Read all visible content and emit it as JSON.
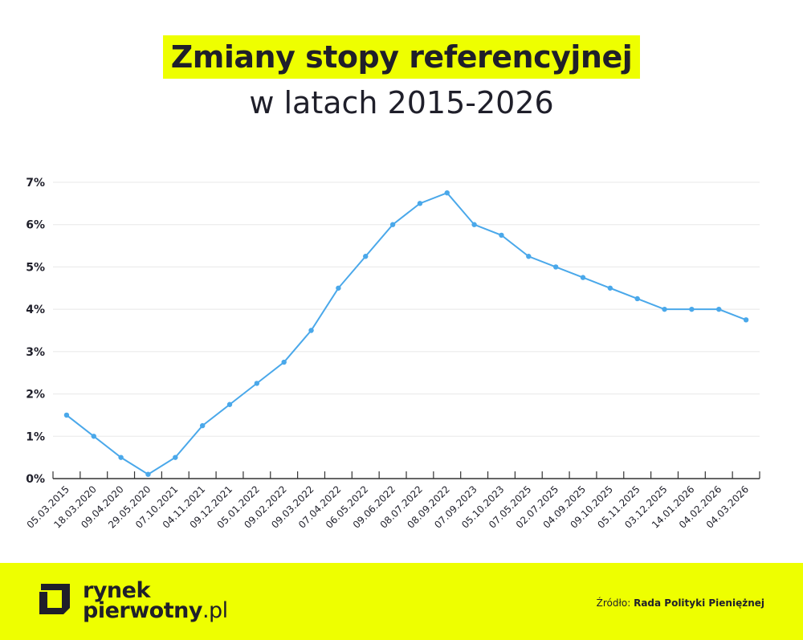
{
  "title_line1": "Zmiany stopy referencyjnej",
  "title_line2": "w latach 2015-2026",
  "chart_data": {
    "type": "line",
    "title": "Zmiany stopy referencyjnej w latach 2015-2026",
    "xlabel": "",
    "ylabel": "",
    "ylim": [
      0,
      7
    ],
    "y_ticks": [
      "0%",
      "1%",
      "2%",
      "3%",
      "4%",
      "5%",
      "6%",
      "7%"
    ],
    "grid": true,
    "line_color": "#4aa8ea",
    "categories": [
      "05.03.2015",
      "18.03.2020",
      "09.04.2020",
      "29.05.2020",
      "07.10.2021",
      "04.11.2021",
      "09.12.2021",
      "05.01.2022",
      "09.02.2022",
      "09.03.2022",
      "07.04.2022",
      "06.05.2022",
      "09.06.2022",
      "08.07.2022",
      "08.09.2022",
      "07.09.2023",
      "05.10.2023",
      "07.05.2025",
      "02.07.2025",
      "04.09.2025",
      "09.10.2025",
      "05.11.2025",
      "03.12.2025",
      "14.01.2026",
      "04.02.2026",
      "04.03.2026"
    ],
    "values": [
      1.5,
      1.0,
      0.5,
      0.1,
      0.5,
      1.25,
      1.75,
      2.25,
      2.75,
      3.5,
      4.5,
      5.25,
      6.0,
      6.5,
      6.75,
      6.0,
      5.75,
      5.25,
      5.0,
      4.75,
      4.5,
      4.25,
      4.0,
      4.0,
      4.0,
      3.75
    ]
  },
  "footer": {
    "logo_line1": "rynek",
    "logo_line2": "pierwotny",
    "logo_suffix": ".pl",
    "source_label": "Źródło:",
    "source_value": "Rada Polityki Pieniężnej",
    "background": "#eeff00"
  }
}
